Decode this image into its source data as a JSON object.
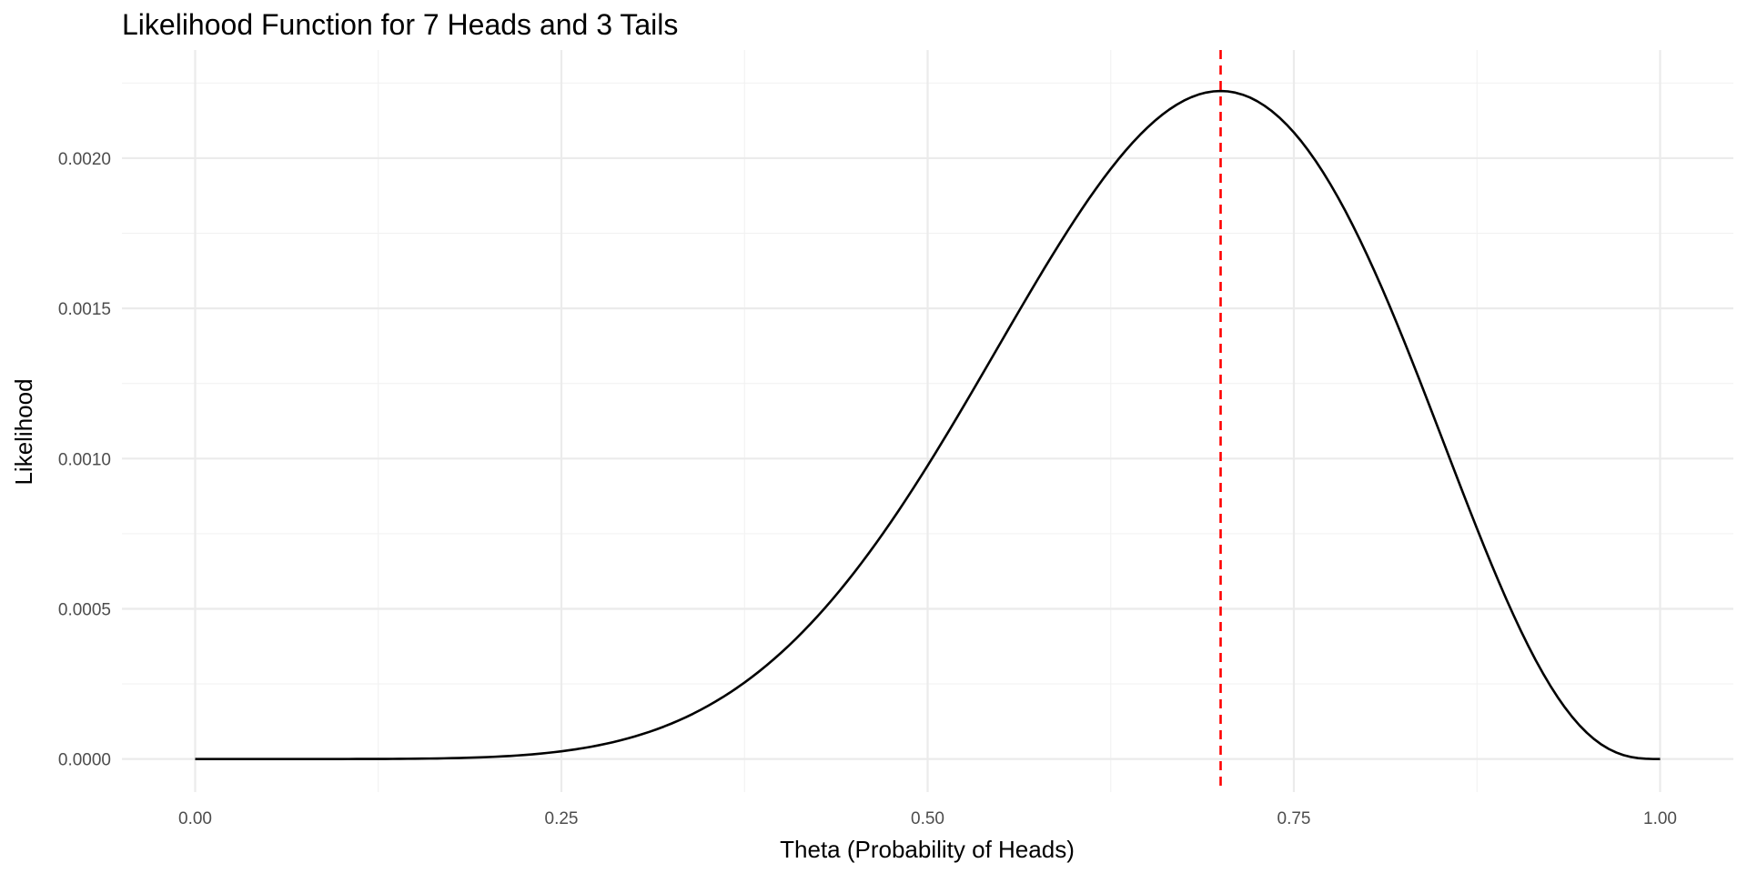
{
  "chart_data": {
    "type": "line",
    "title": "Likelihood Function for 7 Heads and 3 Tails",
    "xlabel": "Theta (Probability of Heads)",
    "ylabel": "Likelihood",
    "xlim": [
      -0.05,
      1.05
    ],
    "ylim": [
      -0.00011,
      0.00236
    ],
    "x_ticks": [
      0.0,
      0.25,
      0.5,
      0.75,
      1.0
    ],
    "x_tick_labels": [
      "0.00",
      "0.25",
      "0.50",
      "0.75",
      "1.00"
    ],
    "y_ticks": [
      0.0,
      0.0005,
      0.001,
      0.0015,
      0.002
    ],
    "y_tick_labels": [
      "0.0000",
      "0.0005",
      "0.0010",
      "0.0015",
      "0.0020"
    ],
    "grid": true,
    "legend": "none",
    "series": [
      {
        "color": "#000000",
        "x": [
          0.0,
          0.05,
          0.1,
          0.15,
          0.2,
          0.25,
          0.3,
          0.35,
          0.4,
          0.45,
          0.5,
          0.55,
          0.6,
          0.65,
          0.7,
          0.75,
          0.8,
          0.85,
          0.9,
          0.95,
          1.0
        ],
        "y": [
          0.0,
          7e-10,
          7.29e-08,
          1.0427e-06,
          6.5536e-06,
          2.57492e-05,
          7.50141e-05,
          0.0001771074,
          0.0003538944,
          0.0006182691,
          0.0009765625,
          0.0013752589,
          0.0017915904,
          0.002149,
          0.0022235661,
          0.0020856857,
          0.0016777216,
          0.0011070497,
          0.0004782969,
          8.73425e-05,
          0.0
        ]
      }
    ],
    "reference_line": {
      "x": 0.7,
      "color": "#ff0000",
      "style": "dashed"
    }
  }
}
